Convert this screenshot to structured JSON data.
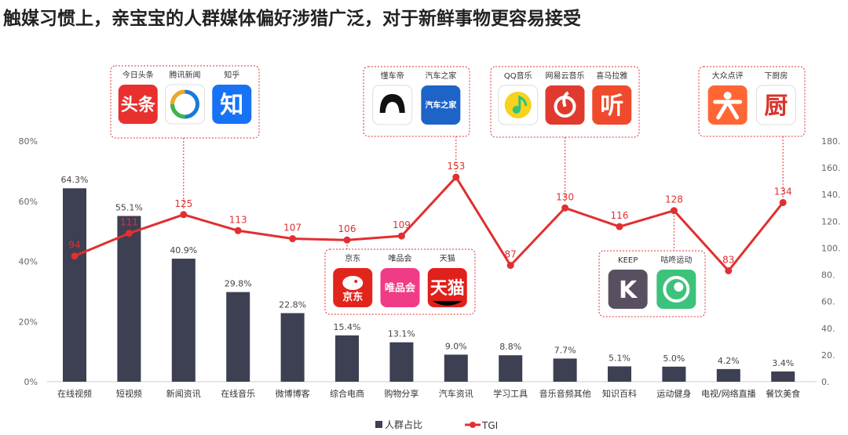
{
  "title": "触媒习惯上，亲宝宝的人群媒体偏好涉猎广泛，对于新鲜事物更容易接受",
  "chart_data": {
    "type": "bar",
    "categories": [
      "在线视频",
      "短视频",
      "新闻资讯",
      "在线音乐",
      "微博博客",
      "综合电商",
      "购物分享",
      "汽车资讯",
      "学习工具",
      "音乐音频其他",
      "知识百科",
      "运动健身",
      "电视/网络直播",
      "餐饮美食"
    ],
    "series": [
      {
        "name": "人群占比",
        "type": "bar",
        "axis": "left",
        "values": [
          64.3,
          55.1,
          40.9,
          29.8,
          22.8,
          15.4,
          13.1,
          9.0,
          8.8,
          7.7,
          5.1,
          5.0,
          4.2,
          3.4
        ],
        "labels": [
          "64.3%",
          "55.1%",
          "40.9%",
          "29.8%",
          "22.8%",
          "15.4%",
          "13.1%",
          "9.0%",
          "8.8%",
          "7.7%",
          "5.1%",
          "5.0%",
          "4.2%",
          "3.4%"
        ]
      },
      {
        "name": "TGI",
        "type": "line",
        "axis": "right",
        "values": [
          94,
          111,
          125,
          113,
          107,
          106,
          109,
          153,
          87,
          130,
          116,
          128,
          83,
          134
        ],
        "labels": [
          "94",
          "111",
          "125",
          "113",
          "107",
          "106",
          "109",
          "153",
          "87",
          "130",
          "116",
          "128",
          "83",
          "134"
        ]
      }
    ],
    "left_axis": {
      "ylim": [
        0,
        80
      ],
      "ticks": [
        "0%",
        "20%",
        "40%",
        "60%",
        "80%"
      ]
    },
    "right_axis": {
      "ylim": [
        0,
        180
      ],
      "ticks": [
        "0.",
        "20.",
        "40.",
        "60.",
        "80.",
        "100.",
        "120.",
        "140.",
        "160.",
        "180."
      ]
    },
    "legend": {
      "position": "bottom-center",
      "items": [
        "人群占比",
        "TGI"
      ]
    },
    "colors": {
      "bar": "#3d3f52",
      "line": "#e03030"
    }
  },
  "app_groups": [
    {
      "name": "news",
      "anchor": 2,
      "apps": [
        {
          "label": "今日头条",
          "glyph": "头条",
          "bg": "#e8302e",
          "fg": "#ffffff",
          "icon": "toutiao-icon"
        },
        {
          "label": "腾讯新闻",
          "glyph": "",
          "bg": "#ffffff",
          "fg": "#1a7ad6",
          "icon": "tencent-news-icon"
        },
        {
          "label": "知乎",
          "glyph": "知",
          "bg": "#1772f6",
          "fg": "#ffffff",
          "icon": "zhihu-icon"
        }
      ]
    },
    {
      "name": "auto",
      "anchor": 7,
      "apps": [
        {
          "label": "懂车帝",
          "glyph": "",
          "bg": "#ffffff",
          "fg": "#111111",
          "icon": "dongchedi-icon"
        },
        {
          "label": "汽车之家",
          "glyph": "汽车之家",
          "bg": "#1e64c8",
          "fg": "#ffffff",
          "icon": "autohome-icon"
        }
      ]
    },
    {
      "name": "music",
      "anchor": 9,
      "apps": [
        {
          "label": "QQ音乐",
          "glyph": "",
          "bg": "#ffffff",
          "fg": "#31c27c",
          "icon": "qq-music-icon"
        },
        {
          "label": "网易云音乐",
          "glyph": "",
          "bg": "#e03a2f",
          "fg": "#ffffff",
          "icon": "netease-music-icon"
        },
        {
          "label": "喜马拉雅",
          "glyph": "听",
          "bg": "#f04a2c",
          "fg": "#ffffff",
          "icon": "ximalaya-icon"
        }
      ]
    },
    {
      "name": "food",
      "anchor": 13,
      "apps": [
        {
          "label": "大众点评",
          "glyph": "",
          "bg": "#ff6633",
          "fg": "#ffffff",
          "icon": "dianping-icon"
        },
        {
          "label": "下厨房",
          "glyph": "厨",
          "bg": "#ffffff",
          "fg": "#d9332a",
          "icon": "xiachufang-icon"
        }
      ]
    },
    {
      "name": "ecommerce",
      "anchor": 5,
      "apps": [
        {
          "label": "京东",
          "glyph": "京东",
          "bg": "#e1251b",
          "fg": "#ffffff",
          "icon": "jd-icon"
        },
        {
          "label": "唯品会",
          "glyph": "唯品会",
          "bg": "#f03c86",
          "fg": "#ffffff",
          "icon": "vipshop-icon"
        },
        {
          "label": "天猫",
          "glyph": "天猫",
          "bg": "#e0201a",
          "fg": "#ffffff",
          "icon": "tmall-icon"
        }
      ]
    },
    {
      "name": "fitness",
      "anchor": 11,
      "apps": [
        {
          "label": "KEEP",
          "glyph": "K",
          "bg": "#584f60",
          "fg": "#ffffff",
          "icon": "keep-icon"
        },
        {
          "label": "咕咚运动",
          "glyph": "",
          "bg": "#3cc27a",
          "fg": "#ffffff",
          "icon": "codoon-icon"
        }
      ]
    }
  ]
}
